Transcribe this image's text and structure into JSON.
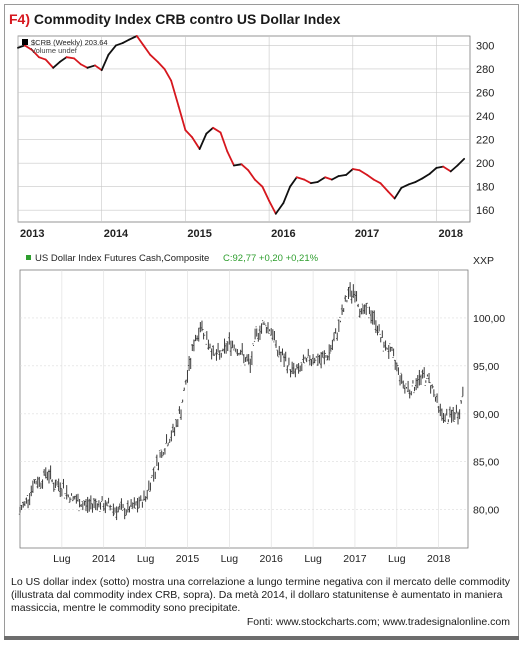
{
  "figure": {
    "number": "F4)",
    "title": "Commodity Index CRB contro US Dollar Index"
  },
  "colors": {
    "accent": "#d6171e",
    "up": "#111111",
    "down": "#d6171e",
    "dollar_bars": "#3a3a3a",
    "dollar_header_value": "#2e9e2e",
    "grid": "#c8c8c8"
  },
  "caption": "Lo US dollar index (sotto) mostra una correlazione a lungo termine negativa con il mercato delle commodity (illustrata dal commodity index CRB, sopra). Da metà 2014, il dollaro statunitense è aumentato in maniera massiccia, mentre le commodity sono precipitate.",
  "sources": "Fonti: www.stockcharts.com; www.tradesignalonline.com",
  "chart_data": [
    {
      "type": "line",
      "legend": {
        "series_label": "$CRB (Weekly) 203.64",
        "volume_label": "Volume undef"
      },
      "x_tick_labels": [
        "2013",
        "2014",
        "2015",
        "2016",
        "2017",
        "2018"
      ],
      "y_ticks": [
        160,
        180,
        200,
        220,
        240,
        260,
        280,
        300
      ],
      "ylim": [
        150,
        308
      ],
      "xlim": [
        2013.0,
        2018.4
      ],
      "grid": true,
      "color_coding": "black = rising, red = falling",
      "series": [
        {
          "x": [
            2013.0,
            2013.08,
            2013.17,
            2013.25,
            2013.33,
            2013.42,
            2013.5,
            2013.58,
            2013.67,
            2013.75,
            2013.83,
            2013.92,
            2014.0,
            2014.08,
            2014.17,
            2014.25,
            2014.33,
            2014.42,
            2014.5,
            2014.58,
            2014.67,
            2014.75,
            2014.83,
            2014.92,
            2015.0,
            2015.08,
            2015.17,
            2015.25,
            2015.33,
            2015.42,
            2015.5,
            2015.58,
            2015.67,
            2015.75,
            2015.83,
            2015.92,
            2016.0,
            2016.08,
            2016.17,
            2016.25,
            2016.33,
            2016.42,
            2016.5,
            2016.58,
            2016.67,
            2016.75,
            2016.83,
            2016.92,
            2017.0,
            2017.08,
            2017.17,
            2017.25,
            2017.33,
            2017.42,
            2017.5,
            2017.58,
            2017.67,
            2017.75,
            2017.83,
            2017.92,
            2018.0,
            2018.08,
            2018.17,
            2018.25,
            2018.33
          ],
          "values": [
            298,
            300,
            296,
            290,
            288,
            281,
            286,
            290,
            289,
            284,
            281,
            283,
            279,
            292,
            300,
            302,
            305,
            308,
            300,
            292,
            286,
            280,
            270,
            248,
            228,
            222,
            212,
            225,
            230,
            226,
            210,
            198,
            199,
            194,
            186,
            180,
            168,
            157,
            166,
            180,
            188,
            186,
            183,
            184,
            188,
            186,
            189,
            190,
            195,
            194,
            190,
            186,
            183,
            176,
            170,
            179,
            182,
            184,
            187,
            191,
            196,
            197,
            193,
            198,
            203.64
          ]
        }
      ]
    },
    {
      "type": "line",
      "legend": {
        "name": "US Dollar Index Futures Cash,Composite",
        "value": "C:92,77 +0,20 +0,21%"
      },
      "y_axis_label": "XXP",
      "x_tick_labels": [
        "Lug",
        "2014",
        "Lug",
        "2015",
        "Lug",
        "2016",
        "Lug",
        "2017",
        "Lug",
        "2018"
      ],
      "x_tick_positions": [
        2013.5,
        2014.0,
        2014.5,
        2015.0,
        2015.5,
        2016.0,
        2016.5,
        2017.0,
        2017.5,
        2018.0
      ],
      "y_tick_labels": [
        "80,00",
        "85,00",
        "90,00",
        "95,00",
        "100,00"
      ],
      "y_ticks": [
        80,
        85,
        90,
        95,
        100
      ],
      "ylim": [
        76,
        105
      ],
      "xlim": [
        2013.0,
        2018.35
      ],
      "grid": true,
      "series": [
        {
          "x": [
            2013.0,
            2013.08,
            2013.17,
            2013.25,
            2013.33,
            2013.42,
            2013.5,
            2013.58,
            2013.67,
            2013.75,
            2013.83,
            2013.92,
            2014.0,
            2014.08,
            2014.17,
            2014.25,
            2014.33,
            2014.42,
            2014.5,
            2014.58,
            2014.67,
            2014.75,
            2014.83,
            2014.92,
            2015.0,
            2015.08,
            2015.17,
            2015.25,
            2015.33,
            2015.42,
            2015.5,
            2015.58,
            2015.67,
            2015.75,
            2015.83,
            2015.92,
            2016.0,
            2016.08,
            2016.17,
            2016.25,
            2016.33,
            2016.42,
            2016.5,
            2016.58,
            2016.67,
            2016.75,
            2016.83,
            2016.92,
            2017.0,
            2017.08,
            2017.17,
            2017.25,
            2017.33,
            2017.42,
            2017.5,
            2017.58,
            2017.67,
            2017.75,
            2017.83,
            2017.92,
            2018.0,
            2018.08,
            2018.17,
            2018.25,
            2018.3
          ],
          "values": [
            79.8,
            81.0,
            82.8,
            83.0,
            84.0,
            82.5,
            82.5,
            81.5,
            81.0,
            80.5,
            80.5,
            80.8,
            80.4,
            80.3,
            80.0,
            79.9,
            80.1,
            80.6,
            81.3,
            83.5,
            85.5,
            87.0,
            88.0,
            90.3,
            94.0,
            97.5,
            99.3,
            97.5,
            96.0,
            96.3,
            97.5,
            97.0,
            96.0,
            95.0,
            98.5,
            99.3,
            98.8,
            96.5,
            95.5,
            94.5,
            94.5,
            95.5,
            96.0,
            95.5,
            96.0,
            97.5,
            99.8,
            102.5,
            102.8,
            100.5,
            100.8,
            99.5,
            97.5,
            96.5,
            95.0,
            93.0,
            92.5,
            93.5,
            94.0,
            93.0,
            90.5,
            89.5,
            89.8,
            90.2,
            92.77
          ]
        }
      ]
    }
  ]
}
